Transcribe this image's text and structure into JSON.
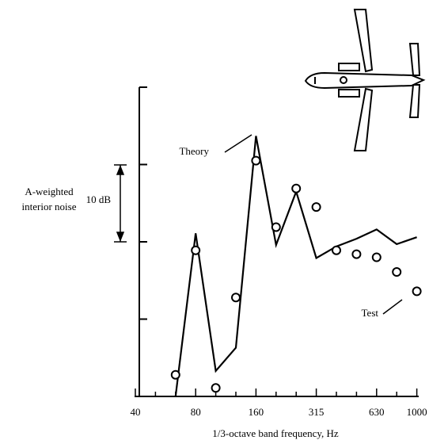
{
  "chart_data": {
    "type": "line",
    "x_label": "1/3-octave band frequency, Hz",
    "y_label": [
      "A-weighted",
      "interior noise"
    ],
    "scale_bar_label": "10 dB",
    "categories": [
      "40",
      null,
      null,
      "80",
      null,
      null,
      "160",
      null,
      null,
      "315",
      null,
      null,
      "630",
      null,
      "1000"
    ],
    "series": [
      {
        "name": "Theory",
        "color": "#000000",
        "style": "line",
        "values": [
          null,
          null,
          0,
          21.1,
          3.3,
          6.3,
          33.7,
          19.6,
          26.5,
          17.9,
          19.4,
          20.4,
          21.6,
          19.7,
          20.6
        ]
      },
      {
        "name": "Test",
        "color": "#000000",
        "style": "markers",
        "values": [
          null,
          null,
          2.8,
          18.9,
          1.1,
          12.8,
          30.5,
          21.9,
          26.9,
          24.5,
          18.9,
          18.4,
          18.0,
          16.1,
          13.6
        ]
      }
    ],
    "ylim": [
      0,
      40
    ],
    "yticks": [
      0,
      10,
      20,
      30,
      40
    ]
  }
}
